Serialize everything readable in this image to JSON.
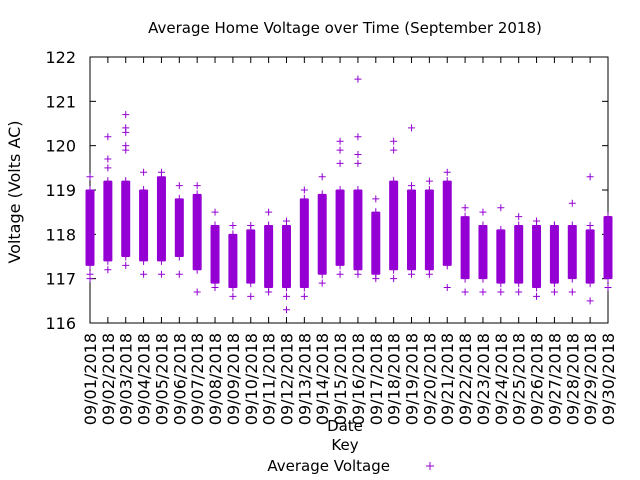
{
  "chart_data": {
    "type": "box",
    "title": "Average Home Voltage over Time (September 2018)",
    "xlabel": "Date",
    "ylabel": "Voltage (Volts AC)",
    "ylim": [
      116,
      122
    ],
    "yticks": [
      116,
      117,
      118,
      119,
      120,
      121,
      122
    ],
    "legend": {
      "title": "Key",
      "placement": "bottom-center",
      "entries": [
        "Average Voltage"
      ]
    },
    "colors": {
      "series": "#9400d3"
    },
    "grid": false,
    "categories": [
      "09/01/2018",
      "09/02/2018",
      "09/03/2018",
      "09/04/2018",
      "09/05/2018",
      "09/06/2018",
      "09/07/2018",
      "09/08/2018",
      "09/09/2018",
      "09/10/2018",
      "09/11/2018",
      "09/12/2018",
      "09/13/2018",
      "09/14/2018",
      "09/15/2018",
      "09/16/2018",
      "09/17/2018",
      "09/18/2018",
      "09/19/2018",
      "09/20/2018",
      "09/21/2018",
      "09/22/2018",
      "09/23/2018",
      "09/24/2018",
      "09/25/2018",
      "09/26/2018",
      "09/27/2018",
      "09/28/2018",
      "09/29/2018",
      "09/30/2018"
    ],
    "series": [
      {
        "name": "Average Voltage",
        "low": [
          117.3,
          117.4,
          117.5,
          117.4,
          117.4,
          117.5,
          117.2,
          116.9,
          116.8,
          116.9,
          116.8,
          116.8,
          116.8,
          117.1,
          117.3,
          117.2,
          117.1,
          117.2,
          117.2,
          117.2,
          117.3,
          117.0,
          117.0,
          116.9,
          116.9,
          116.8,
          116.9,
          117.0,
          116.9,
          117.0
        ],
        "high": [
          119.0,
          119.2,
          119.2,
          119.0,
          119.3,
          118.8,
          118.9,
          118.2,
          118.0,
          118.1,
          118.2,
          118.2,
          118.8,
          118.9,
          119.0,
          119.0,
          118.5,
          119.2,
          119.0,
          119.0,
          119.2,
          118.4,
          118.2,
          118.1,
          118.2,
          118.2,
          118.2,
          118.2,
          118.1,
          118.4
        ],
        "outliers": [
          [
            119.3,
            117.1,
            117.0
          ],
          [
            120.2,
            119.7,
            119.5,
            117.2
          ],
          [
            120.7,
            120.4,
            120.3,
            120.0,
            119.9,
            117.3
          ],
          [
            119.4,
            117.1
          ],
          [
            119.4,
            117.1
          ],
          [
            119.1,
            117.1
          ],
          [
            119.1,
            116.7
          ],
          [
            118.5,
            116.8
          ],
          [
            118.2,
            116.6
          ],
          [
            118.2,
            116.6
          ],
          [
            118.5,
            116.7
          ],
          [
            118.3,
            116.6,
            116.3
          ],
          [
            119.0,
            116.6
          ],
          [
            119.3,
            116.9
          ],
          [
            120.1,
            119.9,
            119.6,
            117.1
          ],
          [
            121.5,
            120.2,
            119.8,
            119.6,
            117.1
          ],
          [
            118.8,
            117.0
          ],
          [
            120.1,
            119.9,
            117.0
          ],
          [
            120.4,
            119.1,
            117.1
          ],
          [
            119.2,
            117.1
          ],
          [
            119.4,
            116.8
          ],
          [
            118.6,
            116.7
          ],
          [
            118.5,
            116.7
          ],
          [
            118.6,
            116.7
          ],
          [
            118.4,
            116.7
          ],
          [
            118.3,
            116.6
          ],
          [
            118.2,
            116.7
          ],
          [
            118.7,
            116.7
          ],
          [
            119.3,
            118.2,
            116.5
          ],
          [
            118.4,
            116.8
          ]
        ]
      }
    ]
  }
}
